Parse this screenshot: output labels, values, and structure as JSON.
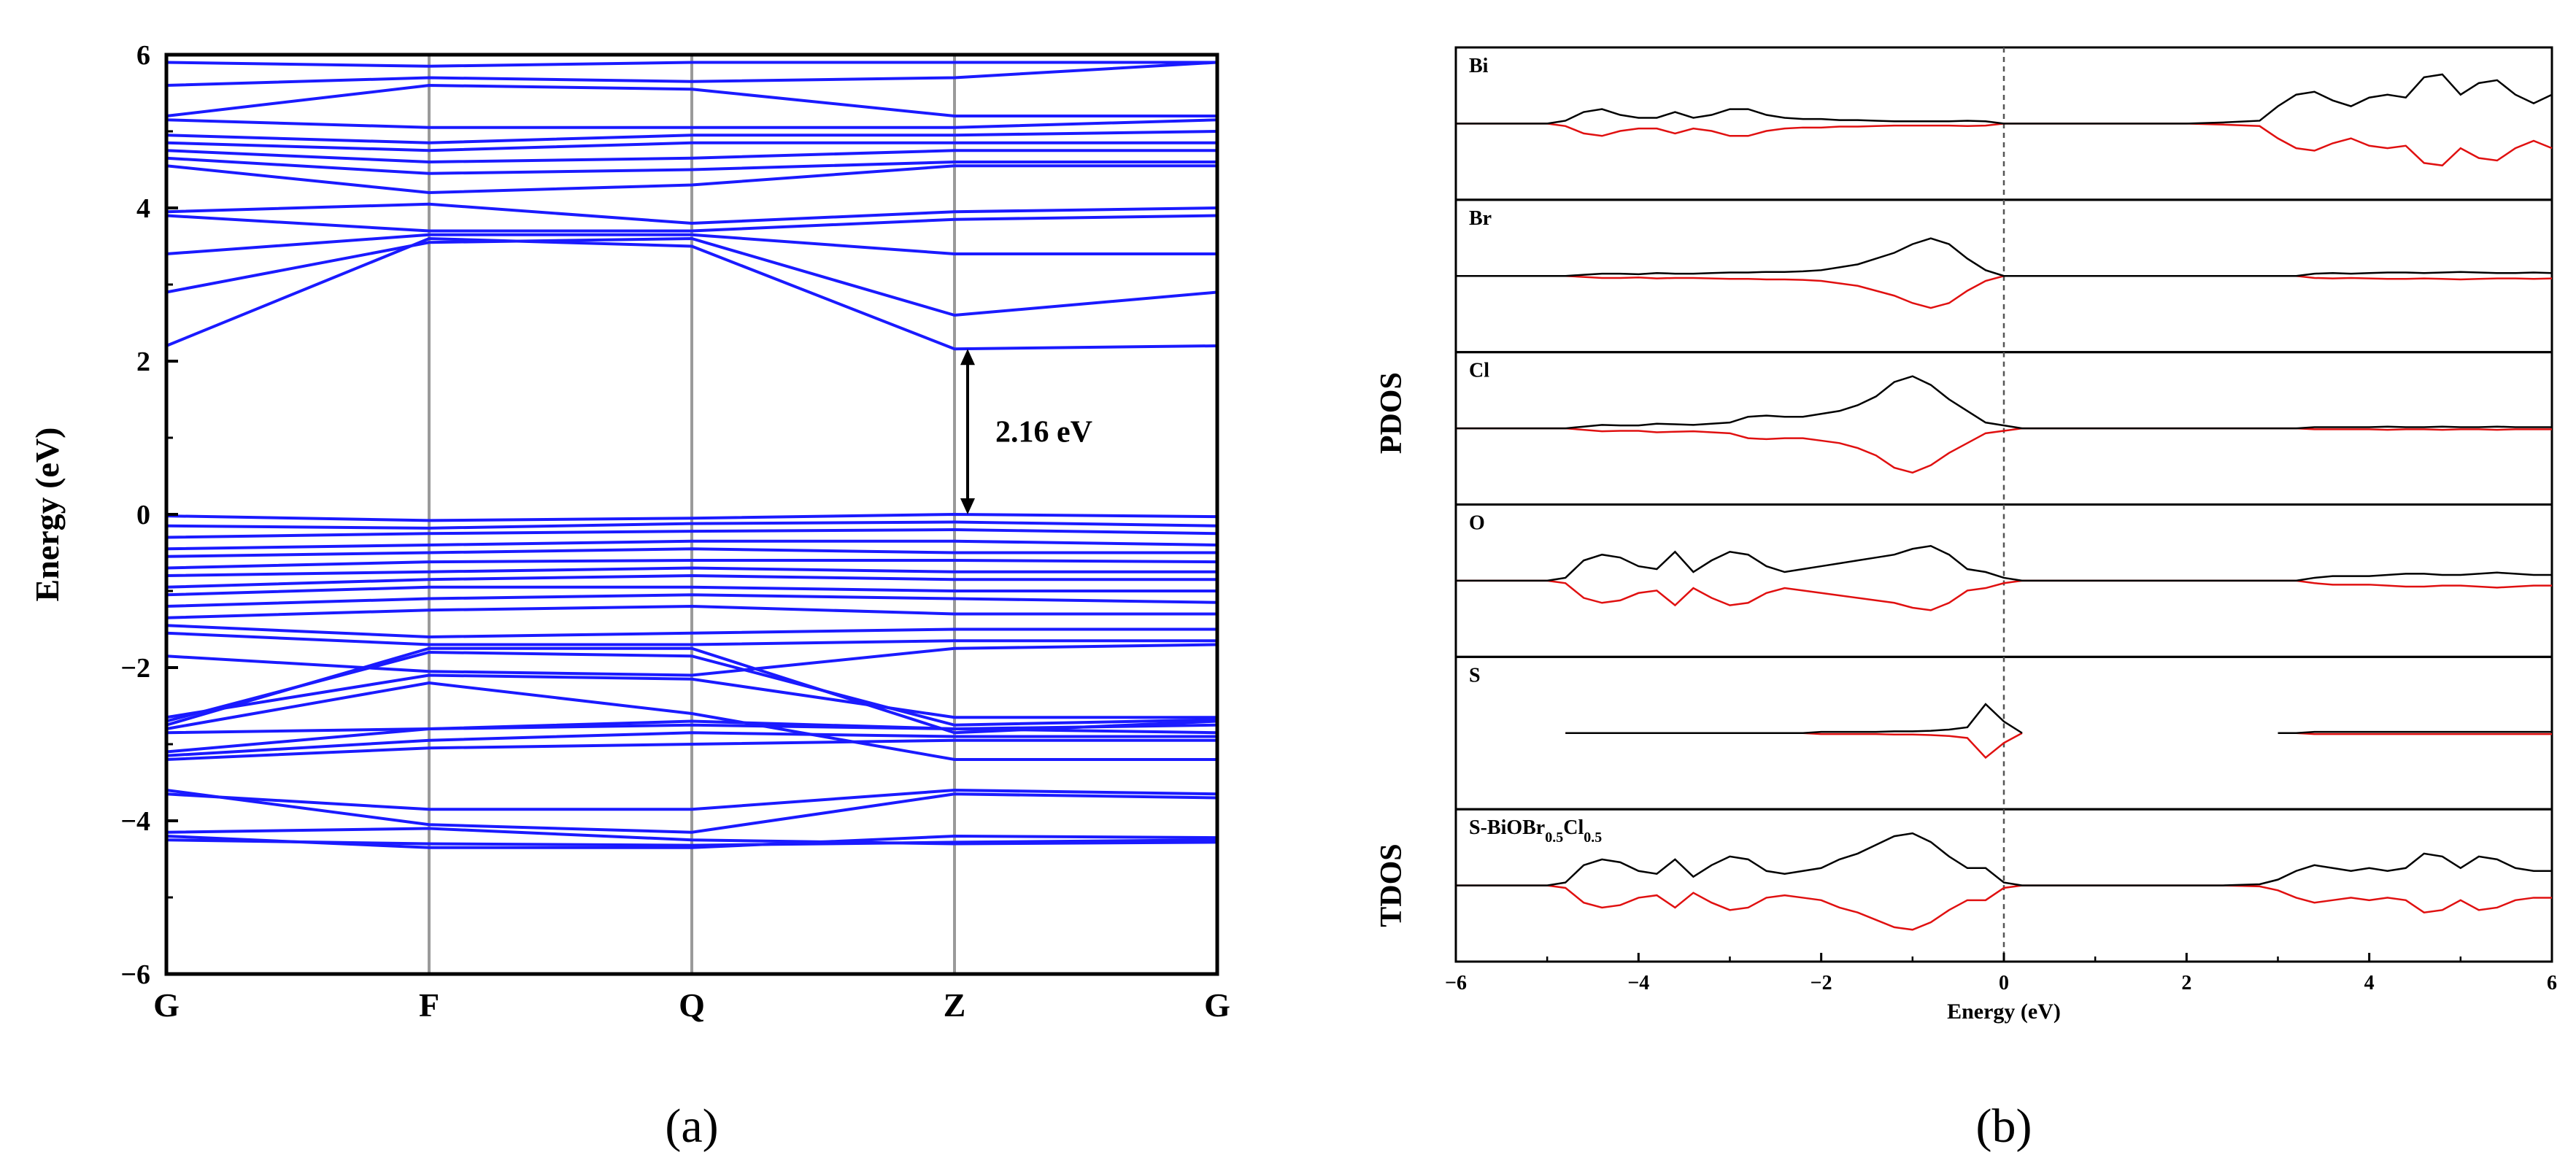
{
  "panel_labels": {
    "a": "(a)",
    "b": "(b)"
  },
  "chart_data": [
    {
      "type": "line",
      "panel": "a",
      "ylabel": "Energy (eV)",
      "xlabel": "",
      "kpoints": [
        "G",
        "F",
        "Q",
        "Z",
        "G"
      ],
      "ylim": [
        -6,
        6
      ],
      "yticks": [
        -6,
        -4,
        -2,
        0,
        2,
        4,
        6
      ],
      "yticklabels": [
        "−6",
        "−4",
        "−2",
        "0",
        "2",
        "4",
        "6"
      ],
      "gap_annotation": {
        "text": "2.16 eV",
        "from": 0,
        "to": 2.16
      },
      "line_color": "#1a1aff",
      "bands": [
        [
          -4.25,
          -4.3,
          -4.32,
          -4.28,
          -4.25
        ],
        [
          -4.2,
          -4.35,
          -4.35,
          -4.2,
          -4.22
        ],
        [
          -4.15,
          -4.1,
          -4.25,
          -4.3,
          -4.28
        ],
        [
          -3.65,
          -3.85,
          -3.85,
          -3.6,
          -3.65
        ],
        [
          -3.6,
          -4.05,
          -4.15,
          -3.65,
          -3.7
        ],
        [
          -3.2,
          -3.05,
          -3.0,
          -2.95,
          -2.95
        ],
        [
          -3.15,
          -2.95,
          -2.85,
          -2.9,
          -2.9
        ],
        [
          -3.1,
          -2.8,
          -2.75,
          -2.8,
          -2.85
        ],
        [
          -2.85,
          -2.8,
          -2.7,
          -2.8,
          -2.75
        ],
        [
          -2.8,
          -2.2,
          -2.6,
          -3.2,
          -3.2
        ],
        [
          -2.75,
          -1.75,
          -1.75,
          -2.85,
          -2.7
        ],
        [
          -2.7,
          -1.8,
          -1.85,
          -2.75,
          -2.68
        ],
        [
          -2.65,
          -2.1,
          -2.15,
          -2.65,
          -2.65
        ],
        [
          -1.85,
          -2.05,
          -2.1,
          -1.75,
          -1.7
        ],
        [
          -1.55,
          -1.7,
          -1.7,
          -1.65,
          -1.65
        ],
        [
          -1.45,
          -1.6,
          -1.55,
          -1.5,
          -1.5
        ],
        [
          -1.35,
          -1.25,
          -1.2,
          -1.3,
          -1.3
        ],
        [
          -1.2,
          -1.1,
          -1.05,
          -1.1,
          -1.15
        ],
        [
          -1.05,
          -0.95,
          -0.95,
          -1.0,
          -1.0
        ],
        [
          -0.95,
          -0.85,
          -0.8,
          -0.85,
          -0.85
        ],
        [
          -0.8,
          -0.75,
          -0.7,
          -0.75,
          -0.75
        ],
        [
          -0.7,
          -0.62,
          -0.6,
          -0.6,
          -0.62
        ],
        [
          -0.55,
          -0.5,
          -0.45,
          -0.5,
          -0.5
        ],
        [
          -0.45,
          -0.4,
          -0.35,
          -0.35,
          -0.4
        ],
        [
          -0.3,
          -0.25,
          -0.22,
          -0.2,
          -0.25
        ],
        [
          -0.15,
          -0.18,
          -0.12,
          -0.1,
          -0.15
        ],
        [
          -0.02,
          -0.08,
          -0.05,
          0.0,
          -0.03
        ],
        [
          2.2,
          3.6,
          3.5,
          2.16,
          2.2
        ],
        [
          2.9,
          3.55,
          3.6,
          2.6,
          2.9
        ],
        [
          3.4,
          3.65,
          3.65,
          3.4,
          3.4
        ],
        [
          3.9,
          3.7,
          3.7,
          3.85,
          3.9
        ],
        [
          3.95,
          4.05,
          3.8,
          3.95,
          4.0
        ],
        [
          4.55,
          4.2,
          4.3,
          4.55,
          4.55
        ],
        [
          4.65,
          4.45,
          4.5,
          4.6,
          4.6
        ],
        [
          4.75,
          4.6,
          4.65,
          4.75,
          4.75
        ],
        [
          4.85,
          4.75,
          4.85,
          4.85,
          4.85
        ],
        [
          4.95,
          4.85,
          4.95,
          4.95,
          5.0
        ],
        [
          5.15,
          5.05,
          5.05,
          5.05,
          5.15
        ],
        [
          5.2,
          5.6,
          5.55,
          5.2,
          5.2
        ],
        [
          5.6,
          5.7,
          5.65,
          5.7,
          5.9
        ],
        [
          5.9,
          5.85,
          5.9,
          5.9,
          5.9
        ]
      ]
    },
    {
      "type": "line",
      "panel": "b",
      "xlabel": "Energy (eV)",
      "xlim": [
        -6,
        6
      ],
      "xticks": [
        -6,
        -4,
        -2,
        0,
        2,
        4,
        6
      ],
      "xticklabels": [
        "−6",
        "−4",
        "−2",
        "0",
        "2",
        "4",
        "6"
      ],
      "group_labels": {
        "pdos": "PDOS",
        "tdos": "TDOS"
      },
      "up_color": "#000000",
      "down_color": "#e01010",
      "fermi_level": 0,
      "x": [
        -6.0,
        -5.5,
        -5.0,
        -4.8,
        -4.6,
        -4.4,
        -4.2,
        -4.0,
        -3.8,
        -3.6,
        -3.4,
        -3.2,
        -3.0,
        -2.8,
        -2.6,
        -2.4,
        -2.2,
        -2.0,
        -1.8,
        -1.6,
        -1.4,
        -1.2,
        -1.0,
        -0.8,
        -0.6,
        -0.4,
        -0.2,
        0.0,
        0.2,
        0.4,
        1.0,
        2.0,
        2.4,
        2.8,
        3.0,
        3.2,
        3.4,
        3.6,
        3.8,
        4.0,
        4.2,
        4.4,
        4.6,
        4.8,
        5.0,
        5.2,
        5.4,
        5.6,
        5.8,
        6.0
      ],
      "panels": [
        {
          "label": "Bi",
          "sub": "",
          "ymax": 1.0,
          "up": [
            0,
            0,
            0,
            0.05,
            0.2,
            0.25,
            0.15,
            0.1,
            0.1,
            0.2,
            0.1,
            0.15,
            0.25,
            0.25,
            0.15,
            0.1,
            0.08,
            0.08,
            0.06,
            0.06,
            0.05,
            0.04,
            0.04,
            0.04,
            0.04,
            0.05,
            0.04,
            0,
            0,
            0,
            0,
            0,
            0.02,
            0.05,
            0.3,
            0.5,
            0.55,
            0.4,
            0.3,
            0.45,
            0.5,
            0.45,
            0.8,
            0.85,
            0.5,
            0.7,
            0.75,
            0.5,
            0.35,
            0.5
          ]
        },
        {
          "label": "Br",
          "sub": "",
          "ymax": 1.0,
          "up": [
            0,
            0,
            0,
            0,
            0.02,
            0.04,
            0.04,
            0.03,
            0.05,
            0.04,
            0.04,
            0.05,
            0.06,
            0.06,
            0.07,
            0.07,
            0.08,
            0.1,
            0.15,
            0.2,
            0.3,
            0.4,
            0.55,
            0.65,
            0.55,
            0.3,
            0.1,
            0,
            0,
            0,
            0,
            0,
            0,
            0,
            0,
            0,
            0.04,
            0.05,
            0.04,
            0.05,
            0.06,
            0.06,
            0.05,
            0.06,
            0.07,
            0.06,
            0.05,
            0.05,
            0.06,
            0.05
          ]
        },
        {
          "label": "Cl",
          "sub": "",
          "ymax": 1.0,
          "up": [
            0,
            0,
            0,
            0,
            0.03,
            0.06,
            0.05,
            0.05,
            0.08,
            0.07,
            0.06,
            0.08,
            0.1,
            0.2,
            0.22,
            0.2,
            0.2,
            0.25,
            0.3,
            0.4,
            0.55,
            0.8,
            0.9,
            0.75,
            0.5,
            0.3,
            0.1,
            0.05,
            0,
            0,
            0,
            0,
            0,
            0,
            0,
            0,
            0.02,
            0.02,
            0.02,
            0.02,
            0.03,
            0.02,
            0.02,
            0.03,
            0.02,
            0.02,
            0.03,
            0.02,
            0.02,
            0.02
          ]
        },
        {
          "label": "O",
          "sub": "",
          "ymax": 1.0,
          "up": [
            0,
            0,
            0,
            0.05,
            0.35,
            0.45,
            0.4,
            0.25,
            0.2,
            0.5,
            0.15,
            0.35,
            0.5,
            0.45,
            0.25,
            0.15,
            0.2,
            0.25,
            0.3,
            0.35,
            0.4,
            0.45,
            0.55,
            0.6,
            0.45,
            0.2,
            0.15,
            0.05,
            0,
            0,
            0,
            0,
            0,
            0,
            0,
            0,
            0.05,
            0.08,
            0.08,
            0.08,
            0.1,
            0.12,
            0.12,
            0.1,
            0.1,
            0.12,
            0.14,
            0.12,
            0.1,
            0.1
          ]
        },
        {
          "label": "S",
          "sub": "",
          "ymax": 1.0,
          "up": [
            null,
            null,
            null,
            0,
            0,
            0,
            0,
            0,
            0,
            0,
            0,
            0,
            0,
            0,
            0,
            0,
            0,
            0.02,
            0.02,
            0.02,
            0.02,
            0.03,
            0.03,
            0.04,
            0.06,
            0.1,
            0.5,
            0.2,
            0,
            null,
            null,
            null,
            null,
            null,
            0,
            0,
            0.02,
            0.02,
            0.02,
            0.02,
            0.02,
            0.02,
            0.02,
            0.02,
            0.02,
            0.02,
            0.02,
            0.02,
            0.02,
            0.02
          ]
        },
        {
          "label": "S-BiOBr",
          "sub": "0.5",
          "label2": "Cl",
          "sub2": "0.5",
          "ymax": 1.0,
          "up": [
            0,
            0,
            0,
            0.05,
            0.35,
            0.45,
            0.4,
            0.25,
            0.2,
            0.45,
            0.15,
            0.35,
            0.5,
            0.45,
            0.25,
            0.2,
            0.25,
            0.3,
            0.45,
            0.55,
            0.7,
            0.85,
            0.9,
            0.75,
            0.5,
            0.3,
            0.3,
            0.05,
            0,
            0,
            0,
            0,
            0,
            0.02,
            0.1,
            0.25,
            0.35,
            0.3,
            0.25,
            0.3,
            0.25,
            0.3,
            0.55,
            0.5,
            0.3,
            0.5,
            0.45,
            0.3,
            0.25,
            0.25
          ]
        }
      ]
    }
  ]
}
